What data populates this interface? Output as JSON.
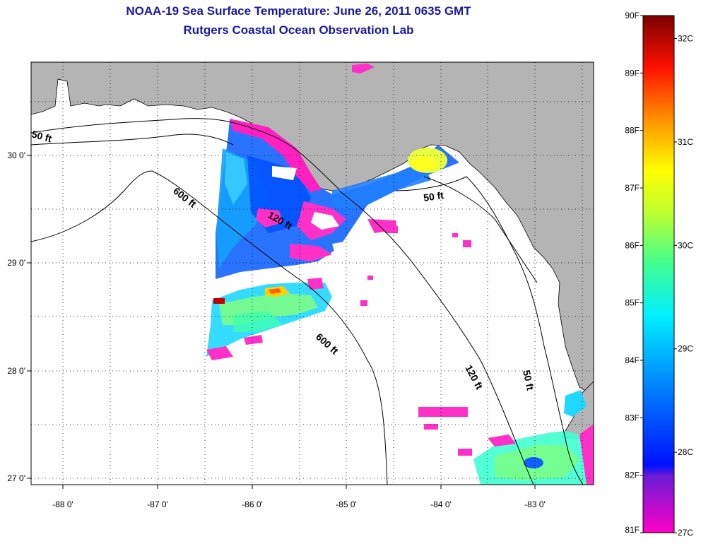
{
  "title": {
    "line1": "NOAA-19 Sea Surface Temperature:  June 26, 2011 0635 GMT",
    "line2": "Rutgers Coastal Ocean Observation Lab"
  },
  "map": {
    "lon_ticks": [
      "-88 0'",
      "-87 0'",
      "-86 0'",
      "-85 0'",
      "-84 0'",
      "-83 0'"
    ],
    "lat_ticks": [
      "30 0'",
      "29 0'",
      "28 0'",
      "27 0'"
    ],
    "isobaths": [
      {
        "id": "50ft-west",
        "label": "50 ft"
      },
      {
        "id": "600ft-north",
        "label": "600 ft"
      },
      {
        "id": "120ft-mid",
        "label": "120 ft"
      },
      {
        "id": "50ft-bigbend",
        "label": "50 ft"
      },
      {
        "id": "600ft-south",
        "label": "600 ft"
      },
      {
        "id": "120ft-south",
        "label": "120 ft"
      },
      {
        "id": "50ft-south",
        "label": "50 ft"
      }
    ],
    "colors": {
      "land": "#b4b4b4",
      "nodata": "#ffffff",
      "grid": "#000000"
    }
  },
  "colorbar": {
    "fahrenheit_labels": [
      "90F",
      "89F",
      "88F",
      "87F",
      "86F",
      "85F",
      "84F",
      "83F",
      "82F",
      "81F"
    ],
    "celsius_labels": [
      "32C",
      "31C",
      "30C",
      "29C",
      "28C",
      "27C"
    ],
    "colors": [
      "#ff00c8",
      "#6a1bd6",
      "#0010ff",
      "#0090ff",
      "#00f0ff",
      "#40ff90",
      "#c0ff30",
      "#ffff00",
      "#ff9000",
      "#ff1000",
      "#7a0000"
    ]
  }
}
